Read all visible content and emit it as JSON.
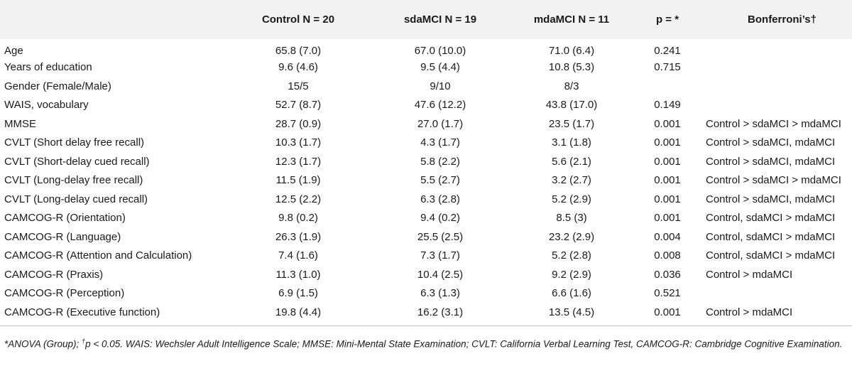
{
  "header": {
    "col0": "",
    "control": "Control N = 20",
    "sdamci": "sdaMCI N = 19",
    "mdamci": "mdaMCI N = 11",
    "p": "p = *",
    "bonferroni": "Bonferroni’s†"
  },
  "rows": [
    {
      "label": "Age",
      "control": "65.8 (7.0)",
      "sdamci": "67.0 (10.0)",
      "mdamci": "71.0 (6.4)",
      "p": "0.241",
      "bonf": ""
    },
    {
      "label": "Years of education",
      "control": "9.6 (4.6)",
      "sdamci": "9.5 (4.4)",
      "mdamci": "10.8 (5.3)",
      "p": "0.715",
      "bonf": ""
    },
    {
      "label": "Gender  (Female/Male)",
      "control": "15/5",
      "sdamci": "9/10",
      "mdamci": "8/3",
      "p": "",
      "bonf": ""
    },
    {
      "label": "WAIS, vocabulary",
      "control": "52.7 (8.7)",
      "sdamci": "47.6 (12.2)",
      "mdamci": "43.8 (17.0)",
      "p": "0.149",
      "bonf": ""
    },
    {
      "label": "MMSE",
      "control": "28.7 (0.9)",
      "sdamci": "27.0 (1.7)",
      "mdamci": "23.5 (1.7)",
      "p": "0.001",
      "bonf": "Control > sdaMCI > mdaMCI"
    },
    {
      "label": "CVLT  (Short delay free recall)",
      "control": "10.3 (1.7)",
      "sdamci": "4.3 (1.7)",
      "mdamci": "3.1 (1.8)",
      "p": "0.001",
      "bonf": "Control > sdaMCI, mdaMCI"
    },
    {
      "label": "CVLT  (Short-delay cued recall)",
      "control": "12.3 (1.7)",
      "sdamci": "5.8 (2.2)",
      "mdamci": "5.6 (2.1)",
      "p": "0.001",
      "bonf": "Control > sdaMCI, mdaMCI"
    },
    {
      "label": "CVLT  (Long-delay free recall)",
      "control": "11.5 (1.9)",
      "sdamci": "5.5 (2.7)",
      "mdamci": "3.2 (2.7)",
      "p": "0.001",
      "bonf": "Control > sdaMCI > mdaMCI"
    },
    {
      "label": "CVLT  (Long-delay cued recall)",
      "control": "12.5 (2.2)",
      "sdamci": "6.3 (2.8)",
      "mdamci": "5.2 (2.9)",
      "p": "0.001",
      "bonf": "Control > sdaMCI, mdaMCI"
    },
    {
      "label": "CAMCOG-R  (Orientation)",
      "control": "9.8 (0.2)",
      "sdamci": "9.4 (0.2)",
      "mdamci": "8.5 (3)",
      "p": "0.001",
      "bonf": "Control, sdaMCI > mdaMCI"
    },
    {
      "label": "CAMCOG-R  (Language)",
      "control": "26.3 (1.9)",
      "sdamci": "25.5 (2.5)",
      "mdamci": "23.2 (2.9)",
      "p": "0.004",
      "bonf": "Control, sdaMCI > mdaMCI"
    },
    {
      "label": "CAMCOG-R  (Attention and Calculation)",
      "control": "7.4 (1.6)",
      "sdamci": "7.3 (1.7)",
      "mdamci": "5.2 (2.8)",
      "p": "0.008",
      "bonf": "Control, sdaMCI > mdaMCI"
    },
    {
      "label": "CAMCOG-R  (Praxis)",
      "control": "11.3 (1.0)",
      "sdamci": "10.4 (2.5)",
      "mdamci": "9.2 (2.9)",
      "p": "0.036",
      "bonf": "Control > mdaMCI"
    },
    {
      "label": "CAMCOG-R  (Perception)",
      "control": "6.9 (1.5)",
      "sdamci": "6.3 (1.3)",
      "mdamci": "6.6 (1.6)",
      "p": "0.521",
      "bonf": ""
    },
    {
      "label": "CAMCOG-R  (Executive function)",
      "control": "19.8 (4.4)",
      "sdamci": "16.2 (3.1)",
      "mdamci": "13.5 (4.5)",
      "p": "0.001",
      "bonf": "Control > mdaMCI"
    }
  ],
  "footnote": {
    "part1": "*ANOVA (Group); ",
    "dagger": "†",
    "part2": "p < 0.05. WAIS: Wechsler Adult Intelligence Scale; MMSE: Mini-Mental State Examination; CVLT: California Verbal Learning Test, CAMCOG-R: Cambridge Cognitive Examination."
  }
}
